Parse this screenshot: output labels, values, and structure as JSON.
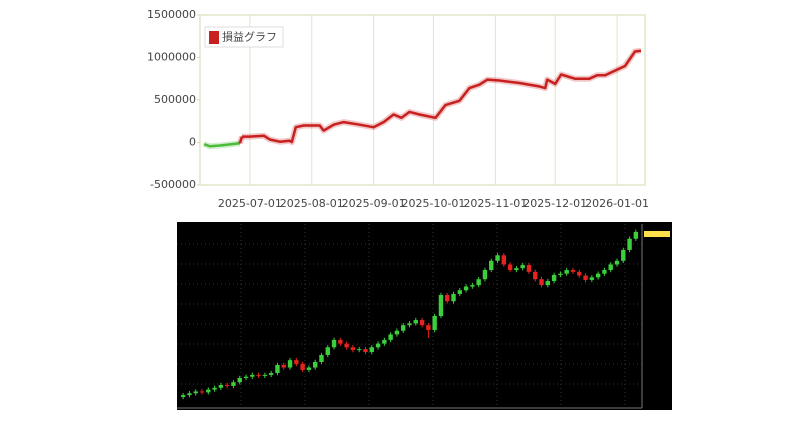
{
  "chart_data": [
    {
      "type": "line",
      "series": [
        {
          "name": "損益グラフ",
          "color": "#c8201f",
          "negative_color": "#4cbb3a",
          "x": [
            "2025-06-08",
            "2025-06-11",
            "2025-06-16",
            "2025-06-26",
            "2025-06-27",
            "2025-07-01",
            "2025-07-08",
            "2025-07-11",
            "2025-07-16",
            "2025-07-21",
            "2025-07-22",
            "2025-07-24",
            "2025-07-28",
            "2025-08-05",
            "2025-08-07",
            "2025-08-12",
            "2025-08-17",
            "2025-08-25",
            "2025-09-01",
            "2025-09-06",
            "2025-09-11",
            "2025-09-15",
            "2025-09-19",
            "2025-09-24",
            "2025-10-02",
            "2025-10-07",
            "2025-10-14",
            "2025-10-19",
            "2025-10-24",
            "2025-10-28",
            "2025-11-03",
            "2025-11-13",
            "2025-11-23",
            "2025-11-26",
            "2025-11-27",
            "2025-12-01",
            "2025-12-04",
            "2025-12-11",
            "2025-12-18",
            "2025-12-22",
            "2025-12-26",
            "2026-01-05",
            "2026-01-10",
            "2026-01-13"
          ],
          "values": [
            -20000,
            -45000,
            -35000,
            -10000,
            70000,
            70000,
            80000,
            35000,
            10000,
            20000,
            5000,
            180000,
            200000,
            200000,
            140000,
            210000,
            240000,
            210000,
            180000,
            240000,
            330000,
            290000,
            360000,
            330000,
            290000,
            440000,
            490000,
            640000,
            680000,
            740000,
            730000,
            700000,
            660000,
            640000,
            740000,
            690000,
            800000,
            750000,
            750000,
            790000,
            790000,
            900000,
            1070000,
            1080000
          ]
        }
      ],
      "xlim": [
        "2025-06-06",
        "2026-01-15"
      ],
      "xticks": [
        "2025-07-01",
        "2025-08-01",
        "2025-09-01",
        "2025-10-01",
        "2025-11-01",
        "2025-12-01",
        "2026-01-01"
      ],
      "ylim": [
        -500000,
        1500000
      ],
      "yticks": [
        -500000,
        0,
        500000,
        1000000,
        1500000
      ],
      "grid": "x",
      "legend": "top-left"
    },
    {
      "type": "candlestick",
      "up_color": "#3ccf3c",
      "down_color": "#e8231f",
      "background": "#000000",
      "ylim": [
        0,
        100
      ],
      "open": [
        6,
        7,
        8,
        9,
        8.5,
        10,
        11,
        12.5,
        12,
        14,
        16.3,
        17,
        18,
        17.5,
        18,
        19,
        23.4,
        22,
        26,
        24,
        20.7,
        22,
        25,
        28.8,
        33,
        37,
        35,
        33,
        31.5,
        32,
        30.4,
        33,
        35,
        37,
        40,
        42,
        45,
        46,
        47.8,
        45,
        42.4,
        50,
        61.4,
        58,
        62,
        64,
        66,
        66.8,
        70,
        75,
        80,
        83,
        78,
        75,
        76,
        77.7,
        74,
        70,
        66.8,
        69,
        72.3,
        73,
        75,
        74,
        72,
        69.6,
        71,
        73,
        75,
        78,
        80,
        85.9,
        92
      ],
      "high": [
        8.2,
        9.2,
        10.2,
        10.2,
        11.2,
        12.2,
        13.7,
        13.7,
        15.2,
        17.5,
        18.2,
        19.2,
        19.2,
        19.2,
        20.2,
        24.6,
        24.6,
        27.2,
        27.2,
        25.2,
        23.2,
        26.2,
        30,
        34.2,
        38.2,
        38.2,
        36.2,
        34.2,
        33.2,
        33.2,
        34.2,
        36.2,
        38.2,
        41.2,
        43.2,
        46.2,
        47.2,
        49,
        49,
        46.2,
        51.2,
        62.6,
        62.6,
        63.2,
        65.2,
        67.2,
        68,
        71.2,
        76.2,
        81.2,
        84.2,
        84.2,
        79.2,
        77.2,
        78.9,
        78.9,
        75.2,
        71.2,
        70.2,
        73.5,
        74.2,
        76.2,
        76.2,
        75.2,
        73.2,
        72.2,
        74.2,
        76.2,
        79.2,
        81.2,
        87.1,
        93.2,
        96.9
      ],
      "low": [
        4.8,
        5.8,
        6.8,
        7.3,
        7.3,
        8.8,
        9.8,
        10.8,
        10.8,
        12.8,
        15.1,
        15.8,
        16.3,
        16.3,
        16.8,
        17.8,
        20.8,
        20.8,
        22.8,
        19.5,
        19.5,
        20.8,
        23.8,
        27.6,
        31.8,
        33.8,
        31.8,
        30.3,
        30.3,
        29.2,
        29.2,
        31.8,
        33.8,
        35.8,
        38.8,
        40.8,
        43.8,
        44.8,
        43.8,
        38,
        41.2,
        48.8,
        56.8,
        56.8,
        60.8,
        62.8,
        64.8,
        65.6,
        68.8,
        73.8,
        78.8,
        76.8,
        73.8,
        73.8,
        74.8,
        72.8,
        68.8,
        65.6,
        65.6,
        67.8,
        71.1,
        71.8,
        72.8,
        70.8,
        68.4,
        68.4,
        69.8,
        71.8,
        73.8,
        76.8,
        78.8,
        84.7,
        90.8
      ],
      "close": [
        7,
        8,
        9,
        8.5,
        10,
        11,
        12.5,
        12,
        14,
        16.3,
        17,
        18,
        17.5,
        18,
        19,
        23.4,
        22,
        26,
        24,
        20.7,
        22,
        25,
        28.8,
        33,
        37,
        35,
        33,
        31.5,
        32,
        30.4,
        33,
        35,
        37,
        40,
        42,
        45,
        46,
        47.8,
        45,
        42.4,
        50,
        61.4,
        58,
        62,
        64,
        66,
        66.8,
        70,
        75,
        80,
        83,
        78,
        75,
        76,
        77.7,
        74,
        70,
        66.8,
        69,
        72.3,
        73,
        75,
        74,
        72,
        69.6,
        71,
        73,
        75,
        78,
        80,
        85.9,
        92,
        95.7
      ]
    }
  ]
}
